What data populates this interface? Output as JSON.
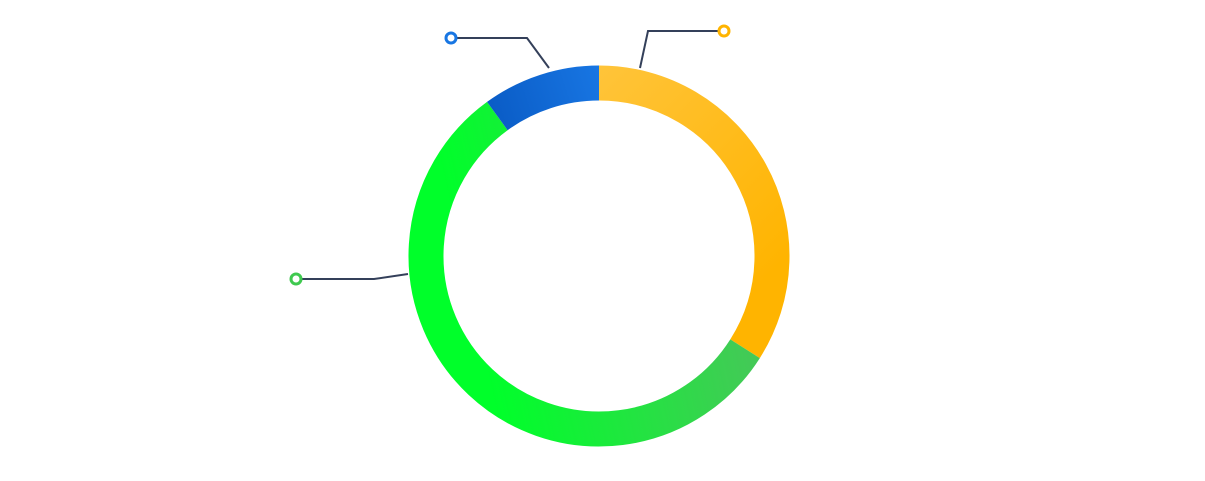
{
  "chart_data": {
    "type": "pie",
    "variant": "donut",
    "title": "",
    "legend": "none",
    "slices": [
      {
        "value": 34,
        "color": "#ffb400",
        "color_light": "#ffc43a",
        "leader_dot": "#ffb400"
      },
      {
        "value": 56,
        "color": "#00ff2a",
        "color_light": "#45c858",
        "leader_dot": "#3fc94f"
      },
      {
        "value": 10,
        "color": "#1876e3",
        "color_light": "#0a5cc6",
        "leader_dot": "#1876e3"
      }
    ]
  }
}
